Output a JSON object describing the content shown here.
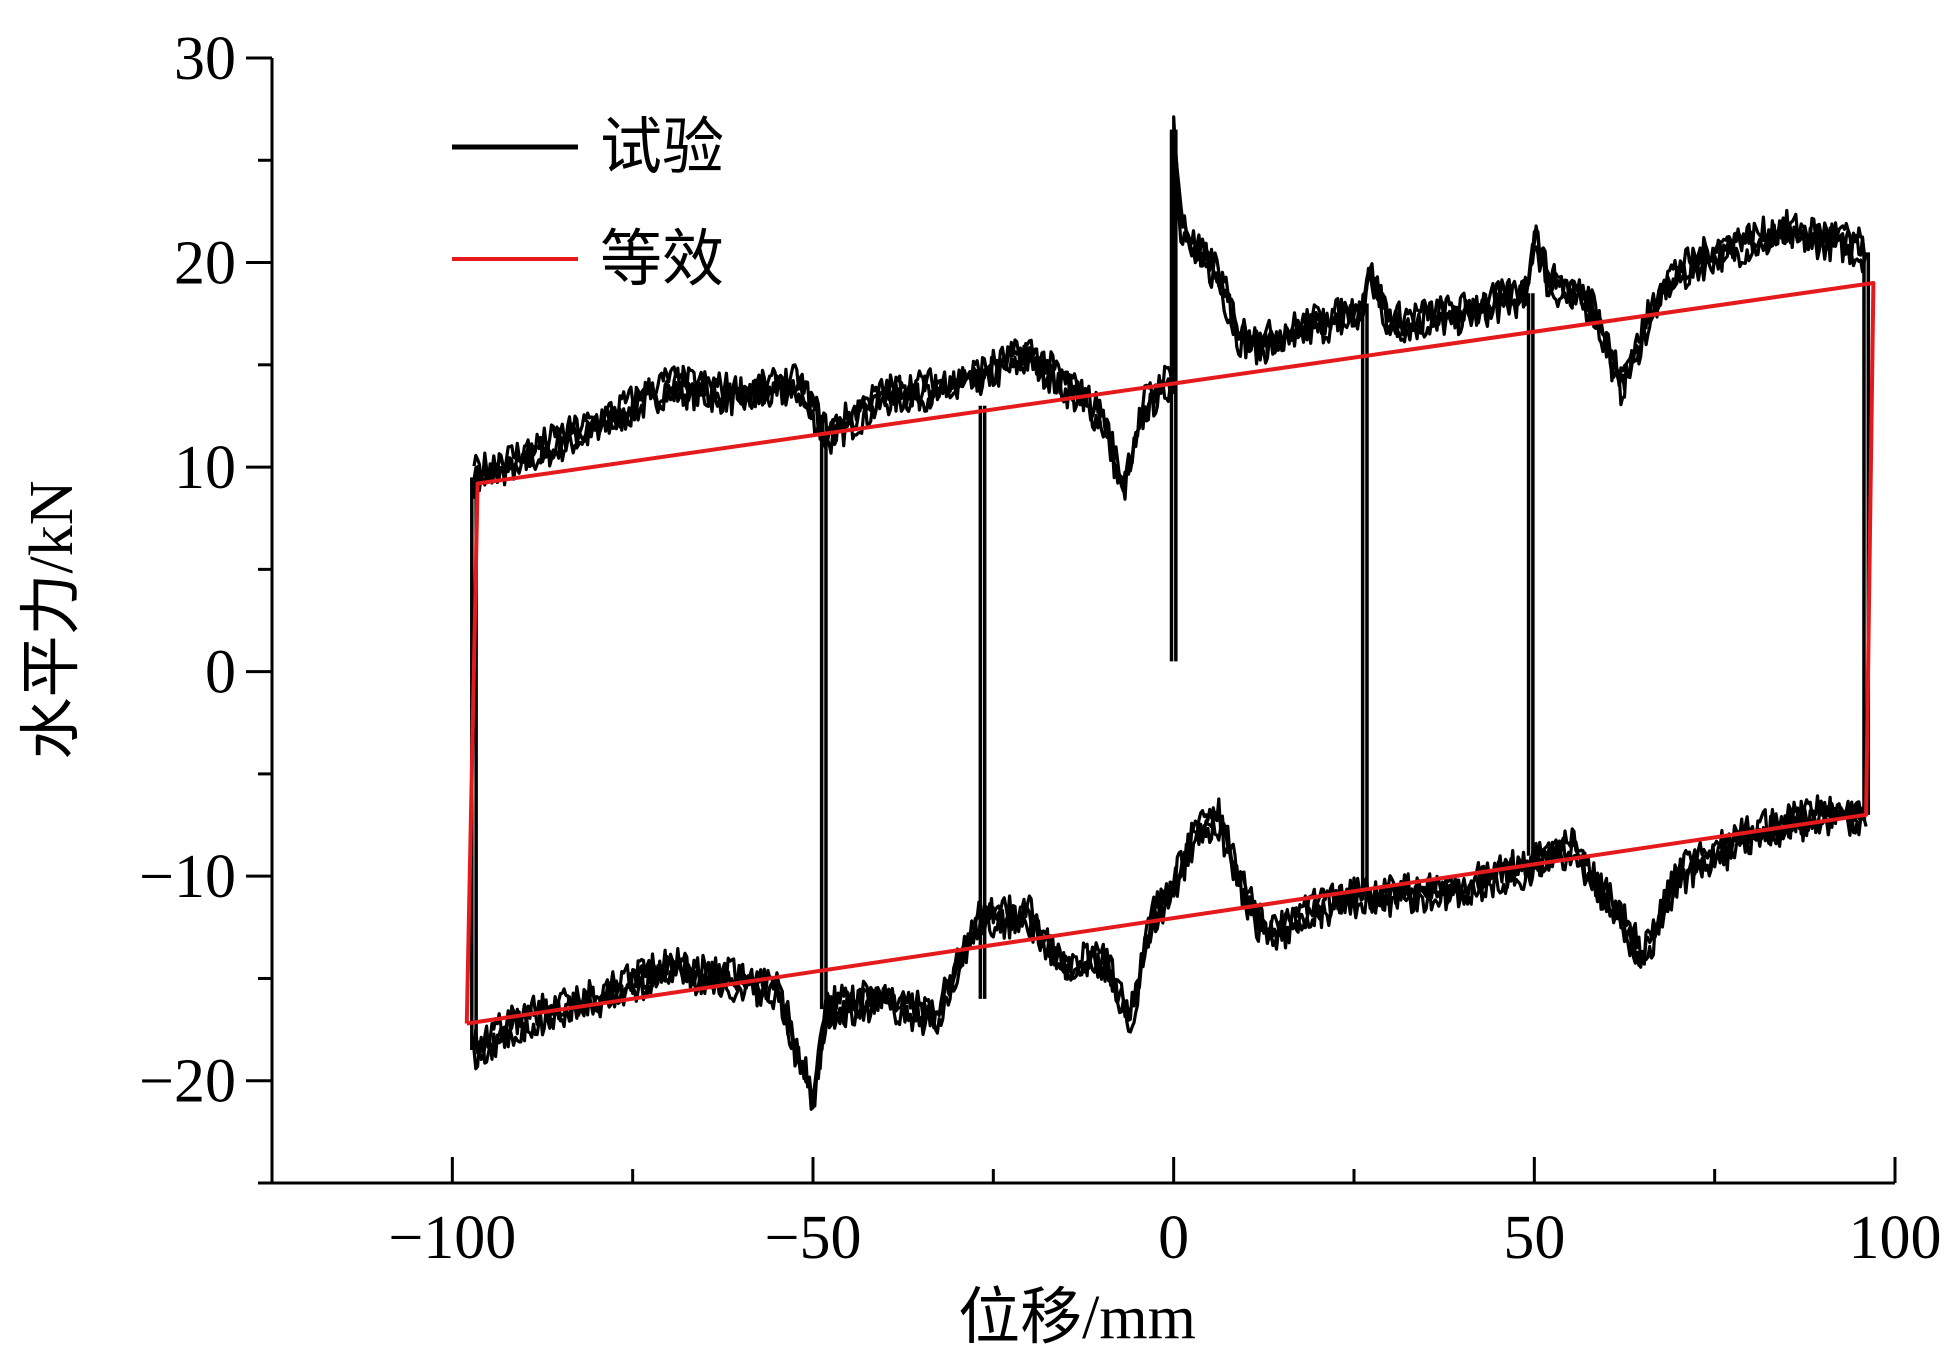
{
  "chart_data": {
    "type": "line",
    "title": "",
    "xlabel": "位移/mm",
    "ylabel": "水平力/kN",
    "xlim": [
      -125,
      100
    ],
    "ylim": [
      -25,
      30
    ],
    "xticks": [
      -100,
      -50,
      0,
      50,
      100
    ],
    "xtick_labels": [
      "−100",
      "−50",
      "0",
      "50",
      "100"
    ],
    "yticks": [
      -20,
      -10,
      0,
      10,
      20,
      30
    ],
    "ytick_labels": [
      "−20",
      "−10",
      "0",
      "10",
      "20",
      "30"
    ],
    "grid": false,
    "legend_position": "top-left",
    "series": [
      {
        "name": "试验",
        "color": "#000000",
        "style": "noisy hysteresis loops (envelope approximated)",
        "loops": [
          {
            "upper": [
              [
                -97,
                9.5
              ],
              [
                -90,
                10.5
              ],
              [
                -80,
                12
              ],
              [
                -70,
                14
              ],
              [
                -60,
                13.5
              ],
              [
                -52,
                14
              ],
              [
                -48,
                11.5
              ],
              [
                -40,
                13.5
              ],
              [
                -30,
                14
              ],
              [
                -20,
                15.5
              ],
              [
                -15,
                14
              ],
              [
                -10,
                12.5
              ],
              [
                -7,
                9
              ],
              [
                -4,
                13
              ],
              [
                0,
                14.5
              ],
              [
                0,
                26.5
              ],
              [
                1,
                22
              ],
              [
                3,
                20.5
              ],
              [
                6,
                19.5
              ],
              [
                9,
                16.5
              ],
              [
                12,
                16
              ],
              [
                20,
                17
              ],
              [
                26,
                17.5
              ],
              [
                27,
                19.5
              ],
              [
                30,
                17
              ],
              [
                40,
                17.5
              ],
              [
                49,
                18.5
              ],
              [
                50,
                21.5
              ],
              [
                52,
                19
              ],
              [
                58,
                18
              ],
              [
                62,
                14
              ],
              [
                68,
                19
              ],
              [
                75,
                20.5
              ],
              [
                85,
                21.5
              ],
              [
                93,
                21
              ],
              [
                96,
                20.5
              ]
            ],
            "lower": [
              [
                96,
                -7
              ],
              [
                90,
                -7
              ],
              [
                80,
                -8
              ],
              [
                70,
                -10
              ],
              [
                65,
                -14
              ],
              [
                62,
                -12
              ],
              [
                55,
                -8.5
              ],
              [
                50,
                -9.5
              ],
              [
                40,
                -10.5
              ],
              [
                30,
                -11
              ],
              [
                26,
                -11
              ],
              [
                20,
                -11.5
              ],
              [
                13,
                -13
              ],
              [
                10,
                -11
              ],
              [
                6,
                -7
              ],
              [
                3,
                -8
              ],
              [
                0,
                -10.5
              ],
              [
                -3,
                -12
              ],
              [
                -6,
                -17
              ],
              [
                -10,
                -14
              ],
              [
                -15,
                -14.5
              ],
              [
                -20,
                -12
              ],
              [
                -27,
                -12
              ],
              [
                -33,
                -17
              ],
              [
                -40,
                -16
              ],
              [
                -48,
                -16.5
              ],
              [
                -50,
                -21
              ],
              [
                -55,
                -15.5
              ],
              [
                -70,
                -14.5
              ],
              [
                -80,
                -16
              ],
              [
                -90,
                -17
              ],
              [
                -97,
                -18.5
              ]
            ],
            "verticals": [
              [
                -97,
                -18.5,
                9.5
              ],
              [
                -48.5,
                -16.5,
                11.5
              ],
              [
                -26.5,
                -16,
                13
              ],
              [
                0,
                0.5,
                26.5
              ],
              [
                26.5,
                -11,
                18
              ],
              [
                49.5,
                -9,
                18.5
              ],
              [
                96,
                -7,
                20.5
              ]
            ]
          }
        ]
      },
      {
        "name": "等效",
        "color": "#e41a1c",
        "points": [
          [
            -98,
            -17.2
          ],
          [
            -96.5,
            9.2
          ],
          [
            97,
            19
          ],
          [
            96,
            -7
          ],
          [
            -98,
            -17.2
          ]
        ]
      }
    ]
  }
}
